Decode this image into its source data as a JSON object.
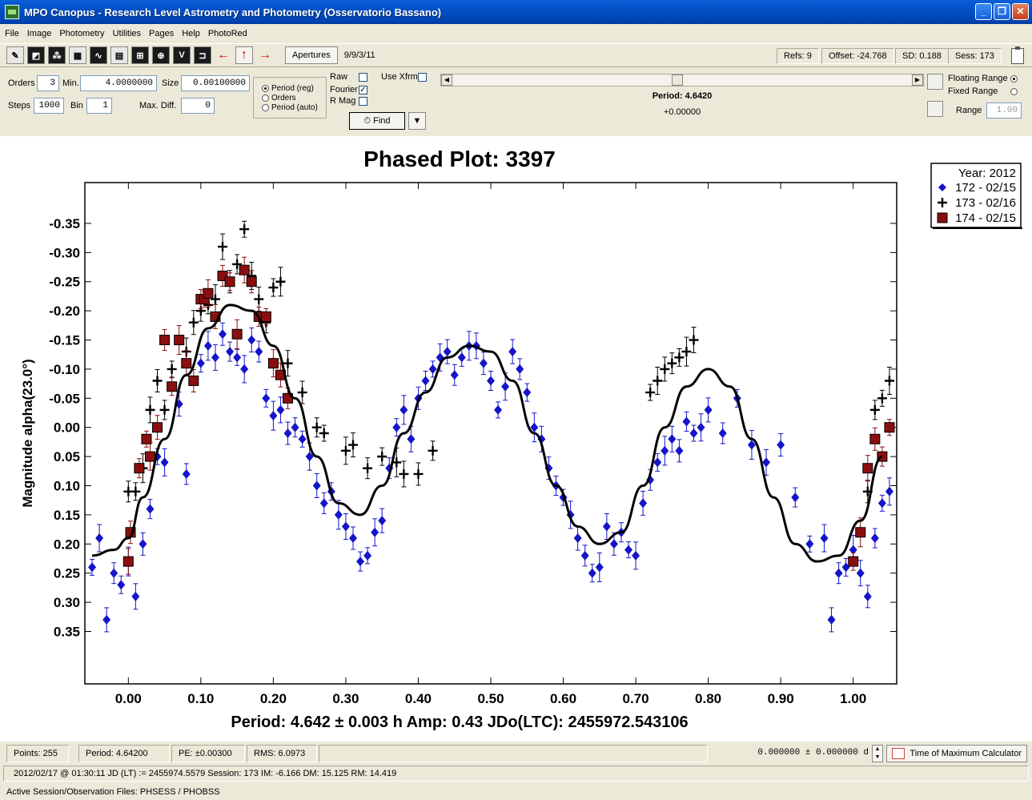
{
  "window": {
    "title": "MPO Canopus - Research Level Astrometry and Photometry (Osservatorio Bassano)",
    "minimize": "_",
    "restore": "❐",
    "close": "✕"
  },
  "menu": [
    "File",
    "Image",
    "Photometry",
    "Utilities",
    "Pages",
    "Help",
    "PhotoRed"
  ],
  "toolbar": {
    "icons": [
      "camera-icon",
      "image-icon",
      "stars-icon",
      "grid-icon",
      "chart-icon",
      "table-icon",
      "target-icon",
      "align-icon",
      "v-icon",
      "exit-icon"
    ],
    "apertures_label": "Apertures",
    "date": "9/9/3/11",
    "refs": "Refs: 9",
    "offset": "Offset: -24.768",
    "sd": "SD: 0.188",
    "sess": "Sess: 173"
  },
  "controls": {
    "orders_label": "Orders",
    "orders_value": "3",
    "min_label": "Min.",
    "min_value": "4.0000000",
    "size_label": "Size",
    "size_value": "0.00100000",
    "steps_label": "Steps",
    "steps_value": "1000",
    "bin_label": "Bin",
    "bin_value": "1",
    "maxdiff_label": "Max. Diff.",
    "maxdiff_value": "0",
    "radio_period_reg": "Period (reg)",
    "radio_orders": "Orders",
    "radio_period_auto": "Period (auto)",
    "raw_label": "Raw",
    "fourier_label": "Fourier",
    "rmag_label": "R Mag",
    "usexfrm_label": "Use Xfrm",
    "find_label": "Find",
    "period_label": "Period: 4.6420",
    "period_offset": "+0.00000",
    "floating_range": "Floating Range",
    "fixed_range": "Fixed Range",
    "range_label": "Range",
    "range_value": "1.00",
    "slider_position": 0.49
  },
  "chart_data": {
    "type": "scatter",
    "title": "Phased Plot: 3397",
    "xlabel": "Period: 4.642 ± 0.003 h     Amp: 0.43     JDo(LTC): 2455972.543106",
    "ylabel": "Magnitude alpha(23.0°)",
    "xlim": [
      -0.06,
      1.06
    ],
    "ylim": [
      0.44,
      -0.42
    ],
    "y_inverted": true,
    "x_ticks": [
      "0.00",
      "0.10",
      "0.20",
      "0.30",
      "0.40",
      "0.50",
      "0.60",
      "0.70",
      "0.80",
      "0.90",
      "1.00"
    ],
    "y_ticks": [
      "-0.35",
      "-0.30",
      "-0.25",
      "-0.20",
      "-0.15",
      "-0.10",
      "-0.05",
      "0.00",
      "0.05",
      "0.10",
      "0.15",
      "0.20",
      "0.25",
      "0.30",
      "0.35"
    ],
    "legend": {
      "title": "Year: 2012",
      "placement": "top-right",
      "entries": [
        "172 - 02/15",
        "173 - 02/16",
        "174 - 02/15"
      ]
    },
    "fourier_fit": {
      "x": [
        -0.05,
        -0.02,
        0.0,
        0.02,
        0.05,
        0.08,
        0.11,
        0.14,
        0.17,
        0.2,
        0.23,
        0.26,
        0.29,
        0.32,
        0.35,
        0.38,
        0.41,
        0.44,
        0.47,
        0.5,
        0.53,
        0.56,
        0.59,
        0.62,
        0.65,
        0.68,
        0.71,
        0.74,
        0.77,
        0.8,
        0.83,
        0.86,
        0.89,
        0.92,
        0.95,
        0.98,
        1.01,
        1.04
      ],
      "y": [
        0.22,
        0.21,
        0.19,
        0.12,
        0.02,
        -0.09,
        -0.17,
        -0.21,
        -0.2,
        -0.14,
        -0.05,
        0.05,
        0.13,
        0.15,
        0.1,
        0.01,
        -0.06,
        -0.12,
        -0.14,
        -0.13,
        -0.08,
        0.01,
        0.1,
        0.17,
        0.2,
        0.18,
        0.1,
        0.0,
        -0.07,
        -0.1,
        -0.07,
        0.02,
        0.12,
        0.2,
        0.23,
        0.22,
        0.16,
        0.05
      ]
    },
    "series": [
      {
        "name": "172 - 02/15",
        "color": "#1414c8",
        "marker": "diamond",
        "x": [
          -0.05,
          -0.04,
          -0.03,
          -0.02,
          -0.01,
          0.0,
          0.01,
          0.02,
          0.03,
          0.04,
          0.05,
          0.07,
          0.08,
          0.1,
          0.11,
          0.12,
          0.13,
          0.14,
          0.15,
          0.16,
          0.17,
          0.18,
          0.19,
          0.2,
          0.21,
          0.22,
          0.23,
          0.24,
          0.25,
          0.26,
          0.27,
          0.28,
          0.29,
          0.3,
          0.31,
          0.32,
          0.33,
          0.34,
          0.35,
          0.36,
          0.37,
          0.38,
          0.39,
          0.4,
          0.41,
          0.42,
          0.43,
          0.44,
          0.45,
          0.46,
          0.47,
          0.48,
          0.49,
          0.5,
          0.51,
          0.52,
          0.53,
          0.54,
          0.55,
          0.56,
          0.57,
          0.58,
          0.59,
          0.6,
          0.61,
          0.62,
          0.63,
          0.64,
          0.65,
          0.66,
          0.67,
          0.68,
          0.69,
          0.7,
          0.71,
          0.72,
          0.73,
          0.74,
          0.75,
          0.76,
          0.77,
          0.78,
          0.79,
          0.8,
          0.82,
          0.84,
          0.86,
          0.88,
          0.9,
          0.92,
          0.94,
          0.96,
          0.97,
          0.98,
          0.99,
          1.0,
          1.01,
          1.02,
          1.03,
          1.04,
          1.05
        ],
        "y": [
          0.24,
          0.19,
          0.33,
          0.25,
          0.27,
          0.23,
          0.29,
          0.2,
          0.14,
          0.05,
          0.06,
          -0.04,
          0.08,
          -0.11,
          -0.14,
          -0.12,
          -0.16,
          -0.13,
          -0.12,
          -0.1,
          -0.15,
          -0.13,
          -0.05,
          -0.02,
          -0.03,
          0.01,
          0.0,
          0.02,
          0.05,
          0.1,
          0.13,
          0.11,
          0.15,
          0.17,
          0.19,
          0.23,
          0.22,
          0.18,
          0.16,
          0.07,
          0.0,
          -0.03,
          0.02,
          -0.05,
          -0.08,
          -0.1,
          -0.12,
          -0.13,
          -0.09,
          -0.12,
          -0.14,
          -0.14,
          -0.11,
          -0.08,
          -0.03,
          -0.07,
          -0.13,
          -0.1,
          -0.06,
          0.0,
          0.02,
          0.07,
          0.1,
          0.12,
          0.15,
          0.19,
          0.22,
          0.25,
          0.24,
          0.17,
          0.2,
          0.18,
          0.21,
          0.22,
          0.13,
          0.09,
          0.06,
          0.04,
          0.02,
          0.04,
          -0.01,
          0.01,
          0.0,
          -0.03,
          0.01,
          -0.05,
          0.03,
          0.06,
          0.03,
          0.12,
          0.2,
          0.19,
          0.33,
          0.25,
          0.24,
          0.21,
          0.25,
          0.29,
          0.19,
          0.13,
          0.11
        ]
      },
      {
        "name": "173 - 02/16",
        "color": "#000000",
        "marker": "plus",
        "x": [
          0.0,
          0.01,
          0.02,
          0.03,
          0.04,
          0.05,
          0.06,
          0.08,
          0.09,
          0.1,
          0.11,
          0.12,
          0.13,
          0.14,
          0.15,
          0.16,
          0.17,
          0.18,
          0.19,
          0.2,
          0.21,
          0.22,
          0.24,
          0.26,
          0.27,
          0.3,
          0.31,
          0.33,
          0.35,
          0.37,
          0.38,
          0.4,
          0.42,
          0.72,
          0.73,
          0.74,
          0.75,
          0.76,
          0.77,
          0.78,
          1.02,
          1.03,
          1.04,
          1.05
        ],
        "y": [
          0.11,
          0.11,
          0.07,
          -0.03,
          -0.08,
          -0.03,
          -0.1,
          -0.13,
          -0.18,
          -0.2,
          -0.21,
          -0.22,
          -0.31,
          -0.25,
          -0.28,
          -0.34,
          -0.26,
          -0.22,
          -0.18,
          -0.24,
          -0.25,
          -0.11,
          -0.06,
          0.0,
          0.01,
          0.04,
          0.03,
          0.07,
          0.05,
          0.06,
          0.08,
          0.08,
          0.04,
          -0.06,
          -0.08,
          -0.1,
          -0.11,
          -0.12,
          -0.13,
          -0.15,
          0.11,
          -0.03,
          -0.05,
          -0.08
        ]
      },
      {
        "name": "174 - 02/15",
        "color": "#8b0e0e",
        "marker": "square",
        "x": [
          0.0,
          0.003,
          0.015,
          0.025,
          0.03,
          0.04,
          0.05,
          0.06,
          0.07,
          0.08,
          0.09,
          0.1,
          0.105,
          0.11,
          0.12,
          0.13,
          0.14,
          0.15,
          0.16,
          0.17,
          0.18,
          0.19,
          0.2,
          0.21,
          0.22,
          1.0,
          1.01,
          1.02,
          1.03,
          1.04,
          1.05
        ],
        "y": [
          0.23,
          0.18,
          0.07,
          0.02,
          0.05,
          0.0,
          -0.15,
          -0.07,
          -0.15,
          -0.11,
          -0.08,
          -0.22,
          -0.22,
          -0.23,
          -0.19,
          -0.26,
          -0.25,
          -0.16,
          -0.27,
          -0.25,
          -0.19,
          -0.19,
          -0.11,
          -0.09,
          -0.05,
          0.23,
          0.18,
          0.07,
          0.02,
          0.05,
          0.0
        ]
      }
    ]
  },
  "status": {
    "points": "Points: 255",
    "period": "Period: 4.64200",
    "pe": "PE: ±0.00300",
    "rms": "RMS: 6.0973",
    "tom_value": "0.000000  ±  0.000000 d",
    "tom_button": "Time of Maximum Calculator",
    "line2": "2012/02/17 @ 01:30:11 JD (LT) := 2455974.5579   Session: 173        IM: -6.166    DM: 15.125    RM: 14.419",
    "line3": "Active Session/Observation Files: PHSESS / PHOBSS"
  }
}
